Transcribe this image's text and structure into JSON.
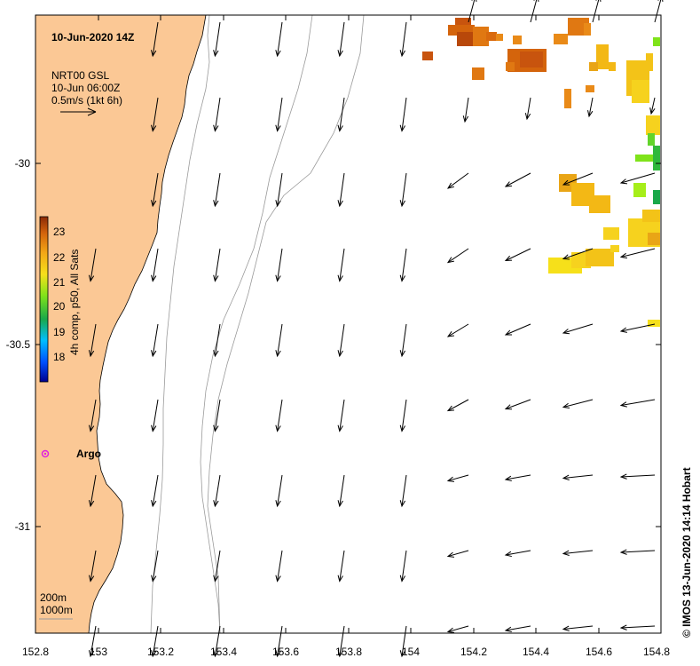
{
  "title": "10-Jun-2020 14Z",
  "legend": {
    "line1": "NRT00 GSL",
    "line2": "10-Jun 06:00Z",
    "line3": "0.5m/s (1kt 6h)"
  },
  "colorbar": {
    "label": "4h comp, p50, All Sats",
    "ticks": [
      "23",
      "22",
      "21",
      "20",
      "19",
      "18"
    ]
  },
  "argo_label": "Argo",
  "isobaths": {
    "a": "200m",
    "b": "1000m"
  },
  "credit": "© IMOS 13-Jun-2020 14:14 Hobart",
  "axes": {
    "x_ticks": [
      "152.8",
      "153",
      "153.2",
      "153.4",
      "153.6",
      "153.8",
      "154",
      "154.2",
      "154.4",
      "154.6",
      "154.8"
    ],
    "y_ticks": [
      "-30",
      "-30.5",
      "-31"
    ],
    "xlim": [
      152.8,
      154.8
    ],
    "ylim": [
      -31.3,
      -29.6
    ]
  },
  "colors": {
    "land": "#fbc895",
    "sst_warm": "#d4640c",
    "sst_mid": "#f3b815",
    "sst_cool": "#79e71a"
  }
}
